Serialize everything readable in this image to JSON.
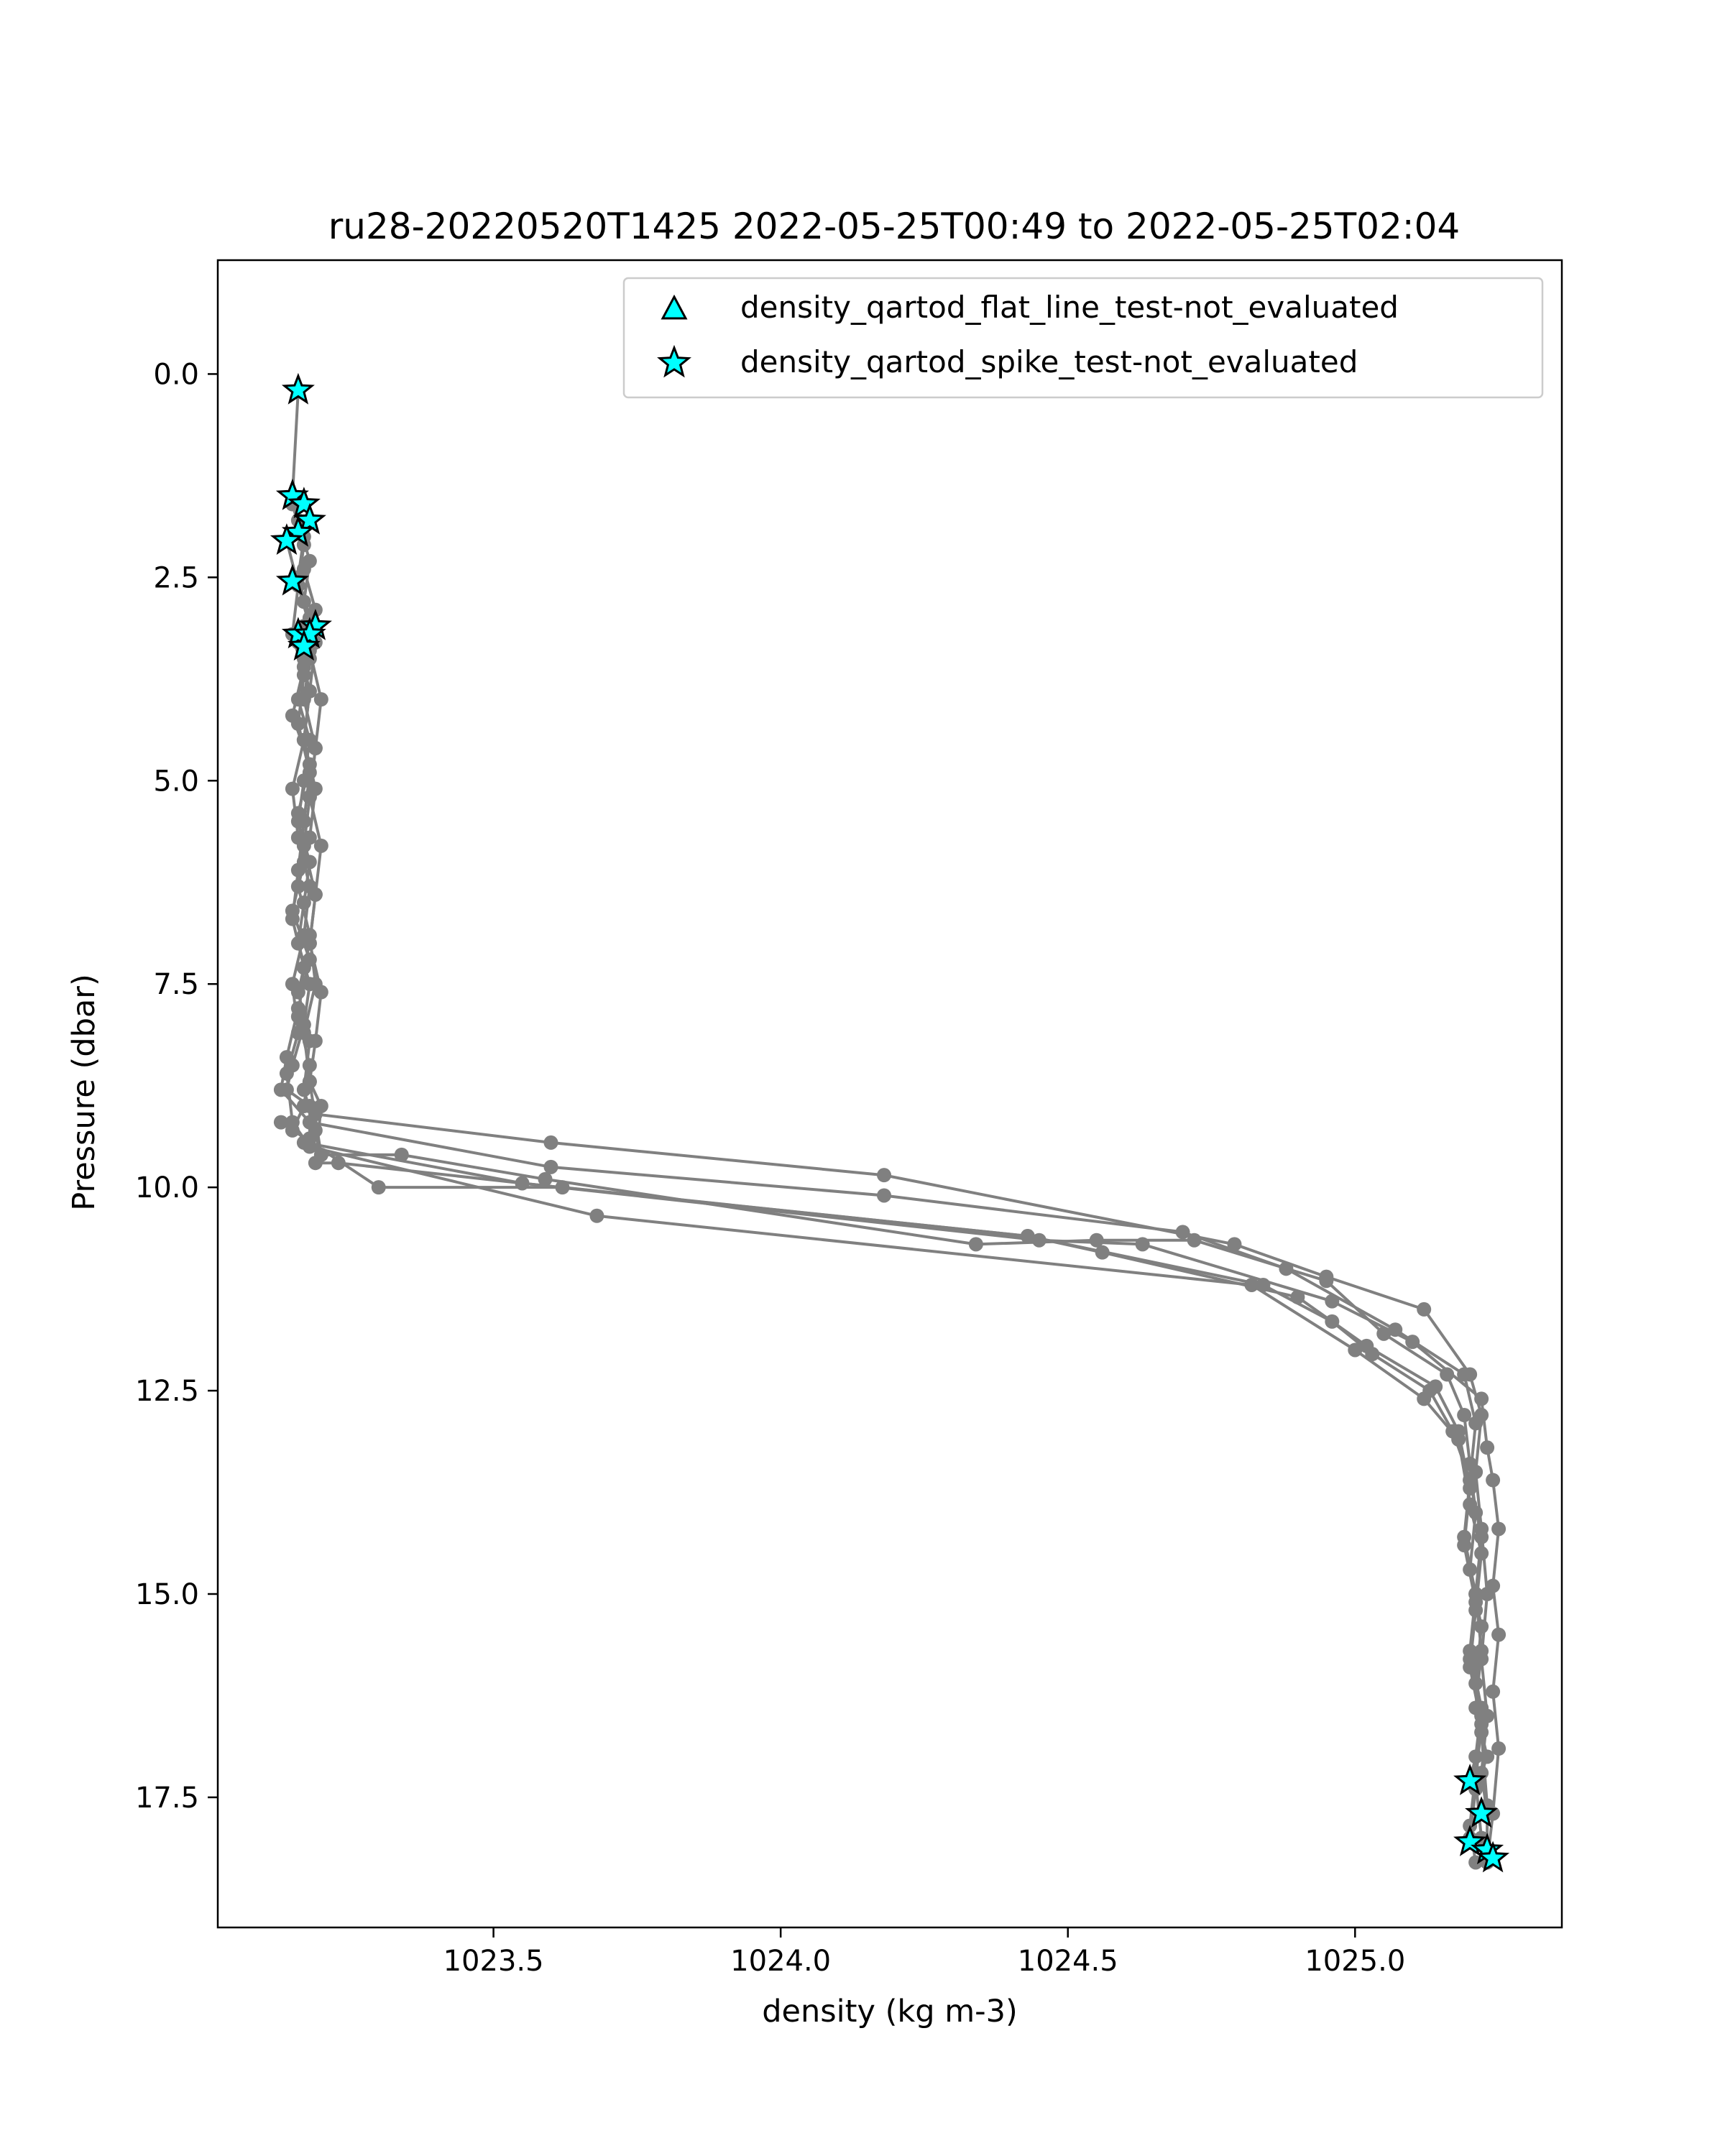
{
  "chart_data": {
    "type": "line",
    "title": "ru28-20220520T1425 2022-05-25T00:49 to 2022-05-25T02:04",
    "xlabel": "density (kg m-3)",
    "ylabel": "Pressure (dbar)",
    "xlim": [
      1023.02,
      1025.36
    ],
    "ylim": [
      19.1,
      -1.4
    ],
    "y_inverted": true,
    "xticks": [
      1023.5,
      1024.0,
      1024.5,
      1025.0
    ],
    "xtick_labels": [
      "1023.5",
      "1024.0",
      "1024.5",
      "1025.0"
    ],
    "yticks": [
      0.0,
      2.5,
      5.0,
      7.5,
      10.0,
      12.5,
      15.0,
      17.5
    ],
    "ytick_labels": [
      "0.0",
      "2.5",
      "5.0",
      "7.5",
      "10.0",
      "12.5",
      "15.0",
      "17.5"
    ],
    "grid": false,
    "legend_position": "top-right",
    "line_color": "#808080",
    "marker_color": "#00ffff",
    "legend": [
      {
        "label": "density_qartod_flat_line_test-not_evaluated",
        "marker": "triangle",
        "color": "#00ffff"
      },
      {
        "label": "density_qartod_spike_test-not_evaluated",
        "marker": "star",
        "color": "#00ffff"
      }
    ],
    "series": [
      {
        "x": [
          1023.16,
          1023.15,
          1023.17,
          1023.16,
          1023.18,
          1023.17,
          1023.16,
          1023.18,
          1023.17,
          1023.16,
          1023.18,
          1023.17,
          1023.16,
          1023.18,
          1023.17,
          1023.15,
          1023.14,
          1023.18,
          1023.19,
          1023.6,
          1024.18,
          1024.79,
          1024.95,
          1025.12,
          1025.2,
          1025.22,
          1025.21,
          1025.22,
          1025.23,
          1025.22,
          1025.23,
          1025.22,
          1025.23
        ],
        "y": [
          0.2,
          1.5,
          2.0,
          2.5,
          3.0,
          3.5,
          4.0,
          4.5,
          5.0,
          5.5,
          6.0,
          6.5,
          7.0,
          7.5,
          8.0,
          8.5,
          8.8,
          9.0,
          9.1,
          9.45,
          9.85,
          10.7,
          11.1,
          11.5,
          12.3,
          12.8,
          13.5,
          14.2,
          15.0,
          15.8,
          16.5,
          17.2,
          17.7
        ]
      },
      {
        "x": [
          1023.15,
          1023.17,
          1023.16,
          1023.18,
          1023.17,
          1023.15,
          1023.18,
          1023.16,
          1023.17,
          1023.15,
          1023.18,
          1023.16,
          1023.14,
          1023.13,
          1023.18,
          1023.6,
          1024.18,
          1024.7,
          1024.88,
          1025.07,
          1025.19,
          1025.21,
          1025.2,
          1025.22,
          1025.21,
          1025.22,
          1025.21,
          1025.23,
          1025.21,
          1025.2
        ],
        "y": [
          1.6,
          2.1,
          2.6,
          3.1,
          3.6,
          4.2,
          4.8,
          5.4,
          6.0,
          6.6,
          7.2,
          7.8,
          8.4,
          8.8,
          9.2,
          9.75,
          10.1,
          10.55,
          11.0,
          11.75,
          12.3,
          12.9,
          13.6,
          14.3,
          15.0,
          15.7,
          16.4,
          17.0,
          17.4,
          18.0
        ]
      },
      {
        "x": [
          1023.16,
          1023.18,
          1023.17,
          1023.19,
          1023.18,
          1023.17,
          1023.19,
          1023.18,
          1023.16,
          1023.18,
          1023.19,
          1023.17,
          1023.18,
          1023.2,
          1023.34,
          1023.59,
          1024.34,
          1024.55,
          1024.72,
          1024.95,
          1025.05,
          1025.16,
          1025.19,
          1025.2,
          1025.21,
          1025.2,
          1025.22,
          1025.21,
          1025.22,
          1025.23,
          1025.23
        ],
        "y": [
          1.8,
          2.3,
          2.8,
          3.3,
          3.9,
          4.5,
          5.1,
          5.7,
          6.3,
          6.9,
          7.5,
          8.1,
          8.7,
          9.6,
          9.6,
          9.9,
          10.7,
          10.65,
          10.65,
          11.15,
          11.8,
          12.3,
          12.8,
          13.4,
          14.0,
          14.7,
          15.4,
          16.1,
          16.7,
          17.6,
          18.2
        ]
      },
      {
        "x": [
          1023.14,
          1023.16,
          1023.15,
          1023.17,
          1023.16,
          1023.18,
          1023.17,
          1023.16,
          1023.15,
          1023.17,
          1023.16,
          1023.18,
          1023.17,
          1023.15,
          1023.13,
          1023.3,
          1023.62,
          1024.43,
          1024.56,
          1024.9,
          1025.02,
          1025.14,
          1025.18,
          1025.2,
          1025.19,
          1025.21,
          1025.2,
          1025.22,
          1025.21,
          1025.2,
          1025.21
        ],
        "y": [
          2.05,
          2.6,
          3.2,
          3.7,
          4.3,
          4.9,
          5.5,
          6.1,
          6.7,
          7.3,
          7.9,
          8.5,
          9.0,
          9.3,
          9.2,
          10.0,
          10.0,
          10.6,
          10.8,
          11.35,
          11.95,
          12.45,
          13.0,
          13.7,
          14.4,
          15.1,
          15.8,
          16.5,
          17.2,
          17.85,
          18.3
        ]
      },
      {
        "x": [
          1023.17,
          1023.18,
          1023.17,
          1023.19,
          1023.18,
          1023.17,
          1023.19,
          1023.18,
          1023.16,
          1023.18,
          1023.17,
          1023.19,
          1023.18,
          1023.17,
          1023.55,
          1024.43,
          1024.84,
          1024.96,
          1025.03,
          1025.13,
          1025.17,
          1025.2,
          1025.19,
          1025.21,
          1025.2,
          1025.22,
          1025.21,
          1025.2
        ],
        "y": [
          3.1,
          3.5,
          4.0,
          4.6,
          5.2,
          5.8,
          6.4,
          7.0,
          7.6,
          8.2,
          8.8,
          9.3,
          9.4,
          9.45,
          9.95,
          10.6,
          11.2,
          11.65,
          12.05,
          12.5,
          13.0,
          13.6,
          14.3,
          15.0,
          15.7,
          16.4,
          17.0,
          17.3
        ]
      },
      {
        "x": [
          1023.16,
          1023.18,
          1023.17,
          1023.15,
          1023.16,
          1023.18,
          1023.17,
          1023.15,
          1023.16,
          1023.14,
          1023.15,
          1023.18,
          1023.68,
          1024.82,
          1025.0,
          1025.12,
          1025.18,
          1025.2,
          1025.22,
          1025.21,
          1025.2,
          1025.22,
          1025.21,
          1025.22,
          1025.23
        ],
        "y": [
          3.3,
          3.9,
          4.5,
          5.1,
          5.7,
          6.3,
          6.9,
          7.5,
          8.1,
          8.6,
          9.2,
          9.5,
          10.35,
          11.2,
          12.0,
          12.6,
          13.1,
          13.9,
          14.5,
          15.2,
          15.9,
          16.6,
          17.3,
          18.0,
          18.2
        ]
      },
      {
        "x": [
          1023.17,
          1023.19,
          1023.18,
          1023.2,
          1023.19,
          1023.18,
          1023.2,
          1023.19,
          1023.18,
          1023.2,
          1023.19,
          1023.18,
          1023.2,
          1023.19,
          1023.23,
          1024.45,
          1024.63,
          1024.96,
          1025.1,
          1025.22,
          1025.23,
          1025.24,
          1025.25,
          1025.24,
          1025.25,
          1025.24,
          1025.25,
          1025.24,
          1025.23
        ],
        "y": [
          2.4,
          2.9,
          3.4,
          4.0,
          4.6,
          5.2,
          5.8,
          6.4,
          7.0,
          7.6,
          8.2,
          8.7,
          9.0,
          9.7,
          9.7,
          10.65,
          10.7,
          11.4,
          11.9,
          12.6,
          13.2,
          13.6,
          14.2,
          14.9,
          15.5,
          16.2,
          16.9,
          17.7,
          18.3
        ]
      }
    ],
    "flagged_points": [
      {
        "x": 1023.16,
        "y": 0.2
      },
      {
        "x": 1023.15,
        "y": 1.5
      },
      {
        "x": 1023.17,
        "y": 1.6
      },
      {
        "x": 1023.18,
        "y": 1.8
      },
      {
        "x": 1023.16,
        "y": 1.95
      },
      {
        "x": 1023.14,
        "y": 2.05
      },
      {
        "x": 1023.15,
        "y": 2.55
      },
      {
        "x": 1023.19,
        "y": 3.1
      },
      {
        "x": 1023.16,
        "y": 3.2
      },
      {
        "x": 1023.18,
        "y": 3.2
      },
      {
        "x": 1023.17,
        "y": 3.35
      },
      {
        "x": 1025.2,
        "y": 17.3
      },
      {
        "x": 1025.22,
        "y": 17.7
      },
      {
        "x": 1025.2,
        "y": 18.05
      },
      {
        "x": 1025.23,
        "y": 18.15
      },
      {
        "x": 1025.24,
        "y": 18.25
      }
    ]
  }
}
